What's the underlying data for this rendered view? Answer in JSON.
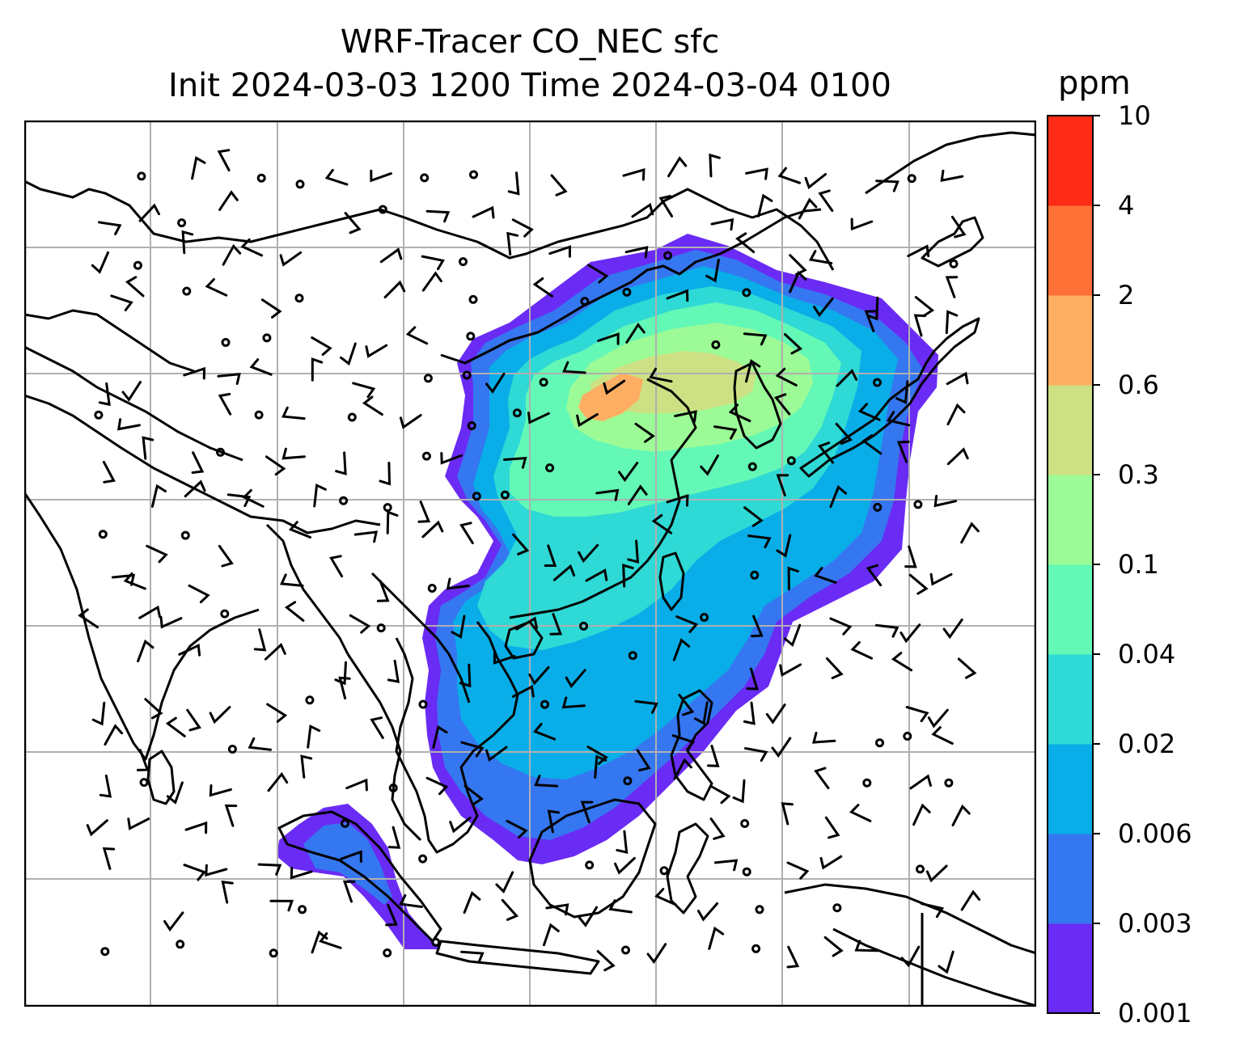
{
  "title": {
    "line1": "WRF-Tracer CO_NEC sfc",
    "line2": "Init 2024-03-03 1200 Time 2024-03-04 0100"
  },
  "colorbar": {
    "unit": "ppm",
    "levels": [
      "0.001",
      "0.003",
      "0.006",
      "0.02",
      "0.04",
      "0.1",
      "0.3",
      "0.6",
      "2",
      "4",
      "10"
    ],
    "colors": [
      "#6a2bf5",
      "#3577f0",
      "#09aee8",
      "#2fd9d5",
      "#63f8b6",
      "#9cfb96",
      "#cde083",
      "#fdae62",
      "#ff7036",
      "#fe2c16"
    ]
  },
  "map": {
    "field": "CO_NEC surface tracer concentration",
    "overlays": [
      "coastlines",
      "country borders",
      "lat-lon gridlines",
      "surface wind barbs"
    ]
  }
}
